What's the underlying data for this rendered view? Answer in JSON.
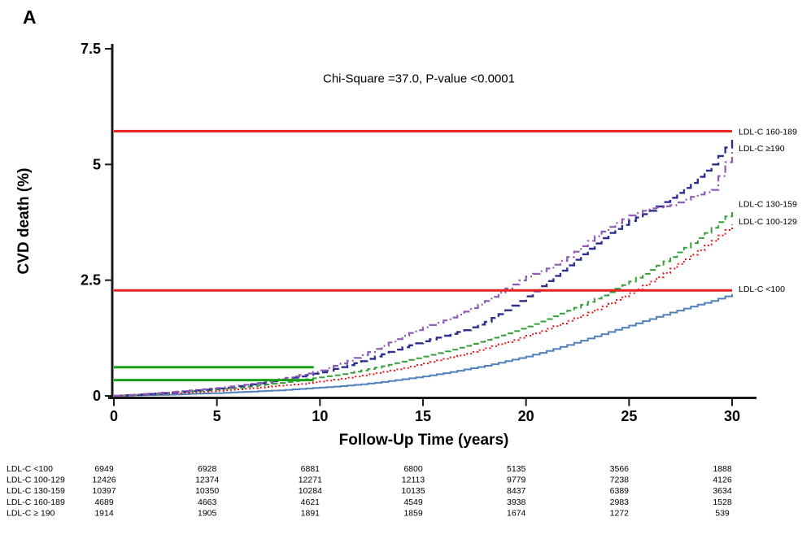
{
  "panel_label": "A",
  "annotation": "Chi-Square =37.0, P-value <0.0001",
  "chart_data": {
    "type": "line",
    "title": "",
    "xlabel": "Follow-Up Time (years)",
    "ylabel": "CVD death (%)",
    "xlim": [
      0,
      30
    ],
    "ylim": [
      0,
      7.5
    ],
    "xticks": [
      0,
      5,
      10,
      15,
      20,
      25,
      30
    ],
    "yticks": [
      0,
      2.5,
      5,
      7.5
    ],
    "ytick_labels": [
      "0",
      "2.5",
      "5",
      "7.5"
    ],
    "grid": false,
    "legend_position": "right-of-curve-ends",
    "x": [
      0,
      1,
      2,
      3,
      4,
      5,
      6,
      7,
      8,
      9,
      10,
      11,
      12,
      13,
      14,
      15,
      16,
      17,
      18,
      19,
      20,
      21,
      22,
      23,
      24,
      25,
      26,
      27,
      28,
      29,
      30
    ],
    "series": [
      {
        "id": "ldl-lt-100",
        "name": "LDL-C  <100",
        "color": "#4f81bd",
        "dash": "",
        "width": 2,
        "label_y": 2.32,
        "values": [
          0,
          0.01,
          0.02,
          0.03,
          0.05,
          0.06,
          0.08,
          0.1,
          0.12,
          0.15,
          0.18,
          0.21,
          0.25,
          0.3,
          0.36,
          0.42,
          0.49,
          0.57,
          0.65,
          0.75,
          0.85,
          0.97,
          1.1,
          1.24,
          1.38,
          1.52,
          1.66,
          1.8,
          1.93,
          2.05,
          2.2
        ]
      },
      {
        "id": "ldl-100-129",
        "name": "LDL-C  100-129",
        "color": "#e31a1c",
        "dash": "2 3",
        "width": 2,
        "label_y": 3.78,
        "values": [
          0,
          0.02,
          0.04,
          0.06,
          0.08,
          0.11,
          0.14,
          0.18,
          0.22,
          0.26,
          0.31,
          0.37,
          0.44,
          0.52,
          0.6,
          0.7,
          0.8,
          0.91,
          1.03,
          1.16,
          1.3,
          1.45,
          1.62,
          1.8,
          2.0,
          2.22,
          2.47,
          2.75,
          3.05,
          3.35,
          3.7
        ]
      },
      {
        "id": "ldl-130-159",
        "name": "LDL-C  130-159",
        "color": "#35a039",
        "dash": "7 4",
        "width": 2,
        "label_y": 4.15,
        "values": [
          0,
          0.02,
          0.05,
          0.08,
          0.11,
          0.14,
          0.18,
          0.23,
          0.28,
          0.34,
          0.4,
          0.47,
          0.55,
          0.64,
          0.74,
          0.85,
          0.96,
          1.08,
          1.21,
          1.35,
          1.5,
          1.66,
          1.84,
          2.03,
          2.24,
          2.47,
          2.72,
          3.0,
          3.3,
          3.63,
          4.0
        ]
      },
      {
        "id": "ldl-160-189",
        "name": "LDL-C  160-189",
        "color": "#2d2f8f",
        "dash": "10 5",
        "width": 2.4,
        "label_y": 5.72,
        "values": [
          0,
          0.02,
          0.05,
          0.08,
          0.12,
          0.16,
          0.21,
          0.27,
          0.34,
          0.42,
          0.51,
          0.62,
          0.75,
          0.9,
          1.05,
          1.18,
          1.3,
          1.42,
          1.6,
          1.85,
          2.15,
          2.48,
          2.82,
          3.18,
          3.52,
          3.78,
          4.0,
          4.28,
          4.6,
          5.0,
          5.55
        ]
      },
      {
        "id": "ldl-ge-190",
        "name": "LDL-C  ≥190",
        "color": "#8f5bb5",
        "dash": "9 4 2 4",
        "width": 2.2,
        "label_y": 5.36,
        "values": [
          0,
          0.03,
          0.06,
          0.09,
          0.13,
          0.17,
          0.22,
          0.28,
          0.36,
          0.45,
          0.55,
          0.7,
          0.88,
          1.08,
          1.3,
          1.48,
          1.63,
          1.82,
          2.05,
          2.32,
          2.58,
          2.75,
          3.0,
          3.35,
          3.65,
          3.9,
          4.05,
          4.12,
          4.3,
          4.45,
          5.35
        ]
      }
    ],
    "reference_lines": [
      {
        "y": 5.72,
        "x0": 0,
        "x1": 30,
        "color": "#e8221f"
      },
      {
        "y": 2.28,
        "x0": 0,
        "x1": 30,
        "color": "#e8221f"
      },
      {
        "y": 0.62,
        "x0": 0,
        "x1": 9.7,
        "color": "#15a015"
      },
      {
        "y": 0.34,
        "x0": 0,
        "x1": 9.7,
        "color": "#15a015"
      }
    ]
  },
  "risk_table": {
    "time_points": [
      0,
      5,
      10,
      15,
      20,
      25,
      30
    ],
    "rows": [
      {
        "label": "LDL-C <100",
        "values": [
          6949,
          6928,
          6881,
          6800,
          5135,
          3566,
          1888
        ]
      },
      {
        "label": "LDL-C 100-129",
        "values": [
          12426,
          12374,
          12271,
          12113,
          9779,
          7238,
          4126
        ]
      },
      {
        "label": "LDL-C 130-159",
        "values": [
          10397,
          10350,
          10284,
          10135,
          8437,
          6389,
          3634
        ]
      },
      {
        "label": "LDL-C 160-189",
        "values": [
          4689,
          4663,
          4621,
          4549,
          3938,
          2983,
          1528
        ]
      },
      {
        "label": "LDL-C ≥ 190",
        "values": [
          1914,
          1905,
          1891,
          1859,
          1674,
          1272,
          539
        ]
      }
    ]
  }
}
